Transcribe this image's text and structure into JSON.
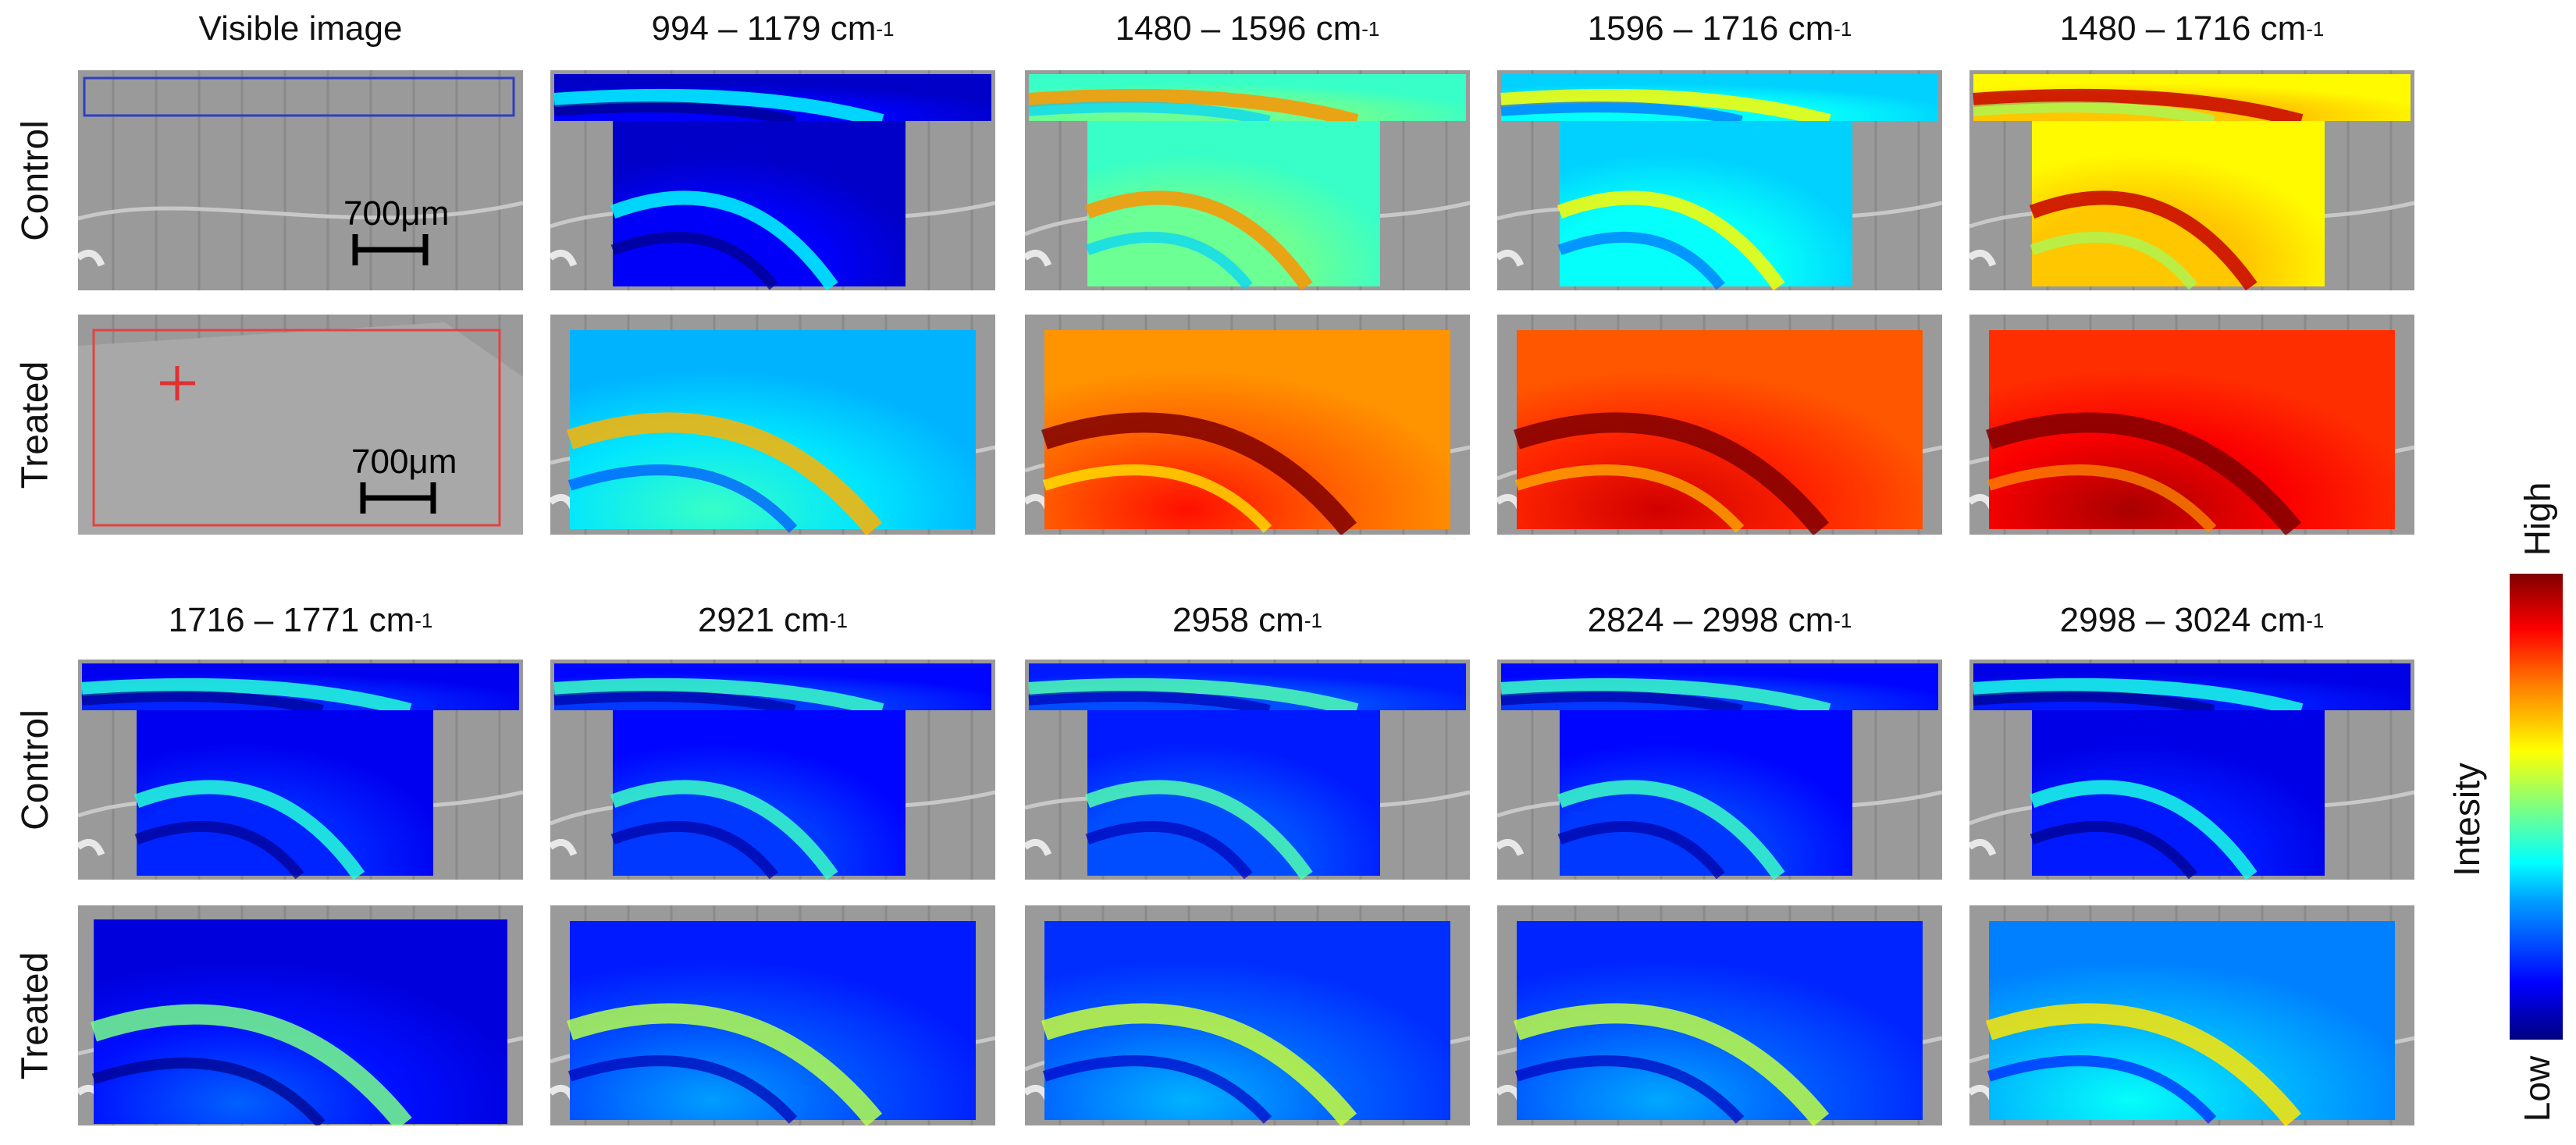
{
  "titles_top": [
    {
      "main": "Visible image",
      "sup": ""
    },
    {
      "main": "994 – 1179 cm",
      "sup": "-1"
    },
    {
      "main": "1480 – 1596 cm",
      "sup": "-1"
    },
    {
      "main": "1596 – 1716 cm",
      "sup": "-1"
    },
    {
      "main": "1480 – 1716 cm",
      "sup": "-1"
    }
  ],
  "titles_bottom": [
    {
      "main": "1716 – 1771 cm",
      "sup": "-1"
    },
    {
      "main": "2921 cm",
      "sup": "-1"
    },
    {
      "main": "2958 cm",
      "sup": "-1"
    },
    {
      "main": "2824 – 2998 cm",
      "sup": "-1"
    },
    {
      "main": "2998 – 3024 cm",
      "sup": "-1"
    }
  ],
  "row_labels": {
    "control": "Control",
    "treated": "Treated"
  },
  "scale_bar_label": "700μm",
  "colorbar": {
    "high": "High",
    "low": "Low",
    "label": "Intesity"
  },
  "panels": [
    {
      "group": "top",
      "condition": "control",
      "band": "Visible image",
      "type": "visible",
      "roi_color": "#2d3fc4"
    },
    {
      "group": "top",
      "condition": "control",
      "band": "994 – 1179 cm-1",
      "type": "control",
      "level": 0.12
    },
    {
      "group": "top",
      "condition": "control",
      "band": "1480 – 1596 cm-1",
      "type": "control",
      "level": 0.48
    },
    {
      "group": "top",
      "condition": "control",
      "band": "1596 – 1716 cm-1",
      "type": "control",
      "level": 0.38
    },
    {
      "group": "top",
      "condition": "control",
      "band": "1480 – 1716 cm-1",
      "type": "control",
      "level": 0.68
    },
    {
      "group": "top",
      "condition": "treated",
      "band": "Visible image",
      "type": "visible",
      "roi_color": "#e04444"
    },
    {
      "group": "top",
      "condition": "treated",
      "band": "994 – 1179 cm-1",
      "type": "treated",
      "level": 0.35
    },
    {
      "group": "top",
      "condition": "treated",
      "band": "1480 – 1596 cm-1",
      "type": "treated",
      "level": 0.78
    },
    {
      "group": "top",
      "condition": "treated",
      "band": "1596 – 1716 cm-1",
      "type": "treated",
      "level": 0.84
    },
    {
      "group": "top",
      "condition": "treated",
      "band": "1480 – 1716 cm-1",
      "type": "treated",
      "level": 0.88
    },
    {
      "group": "bottom",
      "condition": "control",
      "band": "1716 – 1771 cm-1",
      "type": "control-wide",
      "level": 0.16
    },
    {
      "group": "bottom",
      "condition": "control",
      "band": "2921 cm-1",
      "type": "control",
      "level": 0.18
    },
    {
      "group": "bottom",
      "condition": "control",
      "band": "2958 cm-1",
      "type": "control",
      "level": 0.2
    },
    {
      "group": "bottom",
      "condition": "control",
      "band": "2824 – 2998 cm-1",
      "type": "control",
      "level": 0.18
    },
    {
      "group": "bottom",
      "condition": "control",
      "band": "2998 – 3024 cm-1",
      "type": "control",
      "level": 0.15
    },
    {
      "group": "bottom",
      "condition": "treated",
      "band": "1716 – 1771 cm-1",
      "type": "treated-wide",
      "level": 0.14
    },
    {
      "group": "bottom",
      "condition": "treated",
      "band": "2921 cm-1",
      "type": "treated",
      "level": 0.2
    },
    {
      "group": "bottom",
      "condition": "treated",
      "band": "2958 cm-1",
      "type": "treated",
      "level": 0.22
    },
    {
      "group": "bottom",
      "condition": "treated",
      "band": "2824 – 2998 cm-1",
      "type": "treated",
      "level": 0.21
    },
    {
      "group": "bottom",
      "condition": "treated",
      "band": "2998 – 3024 cm-1",
      "type": "treated",
      "level": 0.3
    }
  ]
}
